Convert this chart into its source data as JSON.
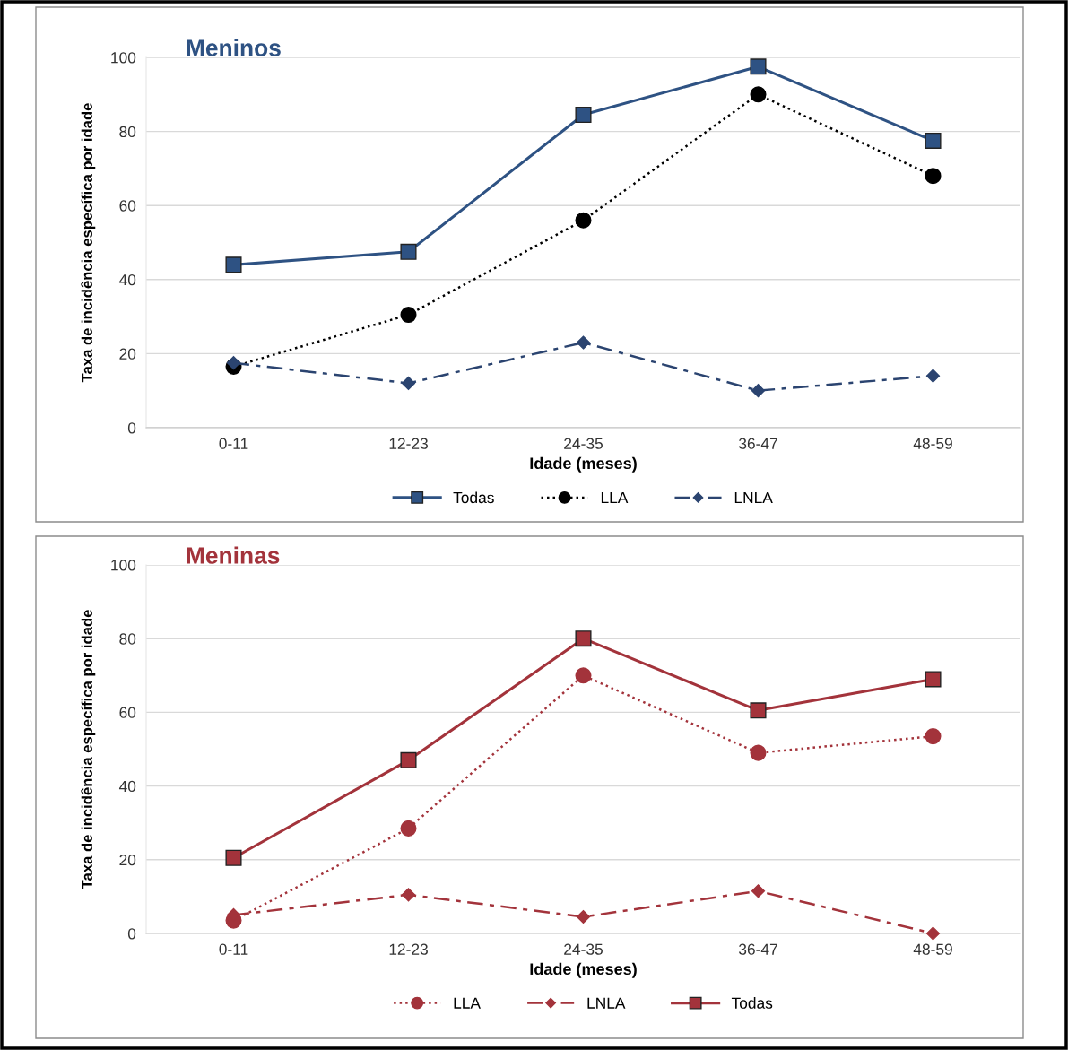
{
  "chart_data": [
    {
      "type": "line",
      "title": "Meninos",
      "xlabel": "Idade (meses)",
      "ylabel": "Taxa de incidência específica por idade",
      "categories": [
        "0-11",
        "12-23",
        "24-35",
        "36-47",
        "48-59"
      ],
      "ylim": [
        0,
        100
      ],
      "yticks": [
        0,
        20,
        40,
        60,
        80,
        100
      ],
      "grid": "y",
      "legend": "bottom",
      "series": [
        {
          "name": "Todas",
          "color": "#2e5283",
          "marker": "square",
          "line_style": "solid",
          "values": [
            44,
            47.5,
            84.5,
            97.5,
            77.5
          ]
        },
        {
          "name": "LLA",
          "color": "#000000",
          "marker": "circle",
          "line_style": "dotted",
          "values": [
            16.5,
            30.5,
            56,
            90,
            68
          ]
        },
        {
          "name": "LNLA",
          "color": "#2b4470",
          "marker": "diamond",
          "line_style": "dashed",
          "values": [
            17.5,
            12,
            23,
            10,
            14
          ]
        }
      ]
    },
    {
      "type": "line",
      "title": "Meninas",
      "xlabel": "Idade (meses)",
      "ylabel": "Taxa de incidência específica por idade",
      "categories": [
        "0-11",
        "12-23",
        "24-35",
        "36-47",
        "48-59"
      ],
      "ylim": [
        0,
        100
      ],
      "yticks": [
        0,
        20,
        40,
        60,
        80,
        100
      ],
      "grid": "y",
      "legend": "bottom",
      "series": [
        {
          "name": "LLA",
          "color": "#a3333b",
          "marker": "circle",
          "line_style": "dotted",
          "values": [
            3.5,
            28.5,
            70,
            49,
            53.5
          ]
        },
        {
          "name": "LNLA",
          "color": "#a3333b",
          "marker": "diamond",
          "line_style": "dashed",
          "values": [
            5,
            10.5,
            4.5,
            11.5,
            0
          ]
        },
        {
          "name": "Todas",
          "color": "#a3333b",
          "marker": "square",
          "line_style": "solid",
          "values": [
            20.5,
            47,
            80,
            60.5,
            69
          ]
        }
      ]
    }
  ]
}
